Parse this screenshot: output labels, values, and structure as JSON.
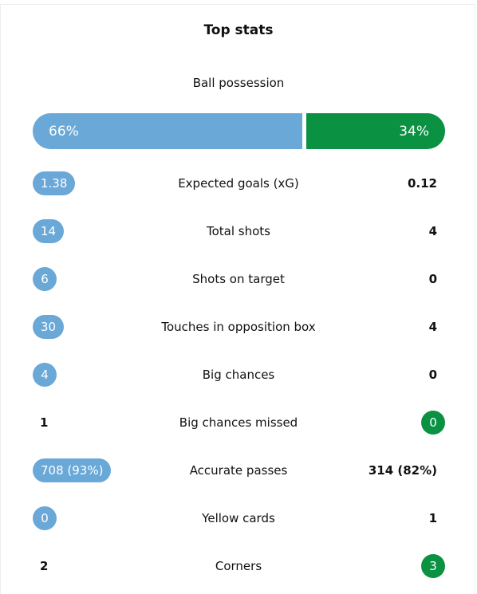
{
  "title": "Top stats",
  "possession": {
    "label": "Ball possession",
    "home": {
      "value": 66,
      "label": "66%"
    },
    "away": {
      "value": 34,
      "label": "34%"
    }
  },
  "rows": [
    {
      "label": "Expected goals (xG)",
      "home": "1.38",
      "away": "0.12"
    },
    {
      "label": "Total shots",
      "home": "14",
      "away": "4"
    },
    {
      "label": "Shots on target",
      "home": "6",
      "away": "0"
    },
    {
      "label": "Touches in opposition box",
      "home": "30",
      "away": "4"
    },
    {
      "label": "Big chances",
      "home": "4",
      "away": "0"
    },
    {
      "label": "Big chances missed",
      "home": "1",
      "away": "0"
    },
    {
      "label": "Accurate passes",
      "home": "708 (93%)",
      "away": "314 (82%)"
    },
    {
      "label": "Yellow cards",
      "home": "0",
      "away": "1"
    },
    {
      "label": "Corners",
      "home": "2",
      "away": "3"
    }
  ]
}
